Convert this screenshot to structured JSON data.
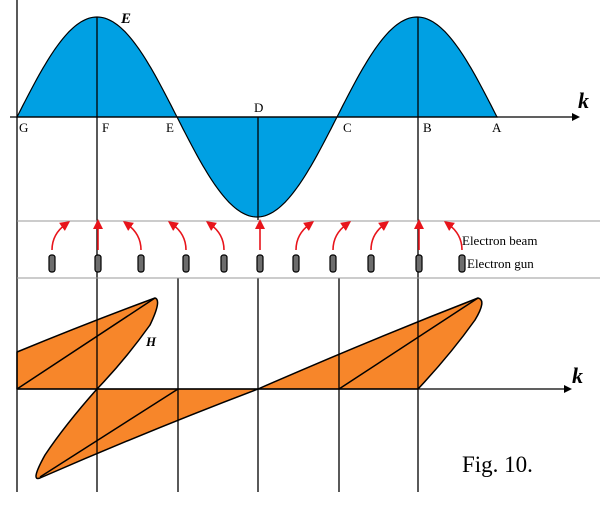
{
  "colors": {
    "wave_e": "#00a0e3",
    "wave_h": "#f7862a",
    "beam": "#e8141b",
    "gun": "#6d6d6d"
  },
  "labels": {
    "e_field": "E",
    "h_field": "H",
    "k_top": "k",
    "k_bottom": "k",
    "points": [
      "G",
      "F",
      "E",
      "D",
      "C",
      "B",
      "A"
    ],
    "electron_beam": "Electron beam",
    "electron_gun": "Electron gun",
    "figure": "Fig. 10."
  }
}
